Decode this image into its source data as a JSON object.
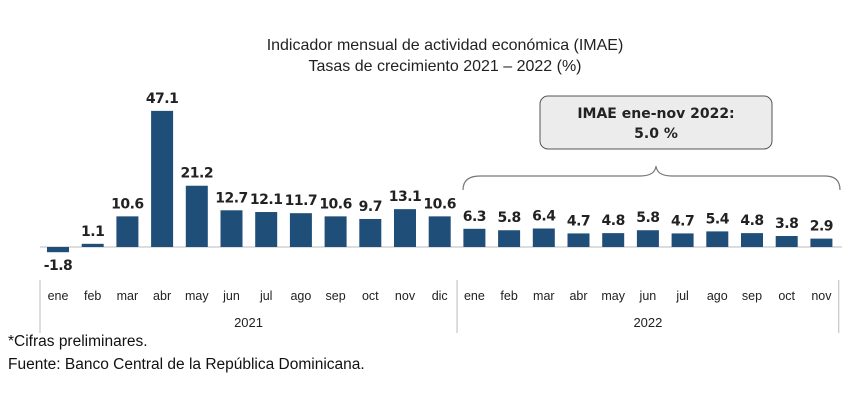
{
  "chart_data": {
    "type": "bar",
    "title": "Indicador mensual de actividad económica (IMAE)",
    "subtitle": "Tasas de crecimiento 2021 – 2022 (%)",
    "categories": [
      "ene",
      "feb",
      "mar",
      "abr",
      "may",
      "jun",
      "jul",
      "ago",
      "sep",
      "oct",
      "nov",
      "dic",
      "ene",
      "feb",
      "mar",
      "abr",
      "may",
      "jun",
      "jul",
      "ago",
      "sep",
      "oct",
      "nov"
    ],
    "groups": [
      {
        "label": "2021",
        "count": 12
      },
      {
        "label": "2022",
        "count": 11
      }
    ],
    "values": [
      -1.8,
      1.1,
      10.6,
      47.1,
      21.2,
      12.7,
      12.1,
      11.7,
      10.6,
      9.7,
      13.1,
      10.6,
      6.3,
      5.8,
      6.4,
      4.7,
      4.8,
      5.8,
      4.7,
      5.4,
      4.8,
      3.8,
      2.9
    ],
    "value_labels": [
      "-1.8",
      "1.1",
      "10.6",
      "47.1",
      "21.2",
      "12.7",
      "12.1",
      "11.7",
      "10.6",
      "9.7",
      "13.1",
      "10.6",
      "6.3",
      "5.8",
      "6.4",
      "4.7",
      "4.8",
      "5.8",
      "4.7",
      "5.4",
      "4.8",
      "3.8",
      "2.9"
    ],
    "bar_color": "#1f4e79",
    "grid": false,
    "annotation": {
      "line1": "IMAE ene-nov 2022:",
      "line2": "5.0 %"
    }
  },
  "notes": {
    "preliminary": "*Cifras preliminares.",
    "source": "Fuente: Banco Central de la República Dominicana."
  }
}
